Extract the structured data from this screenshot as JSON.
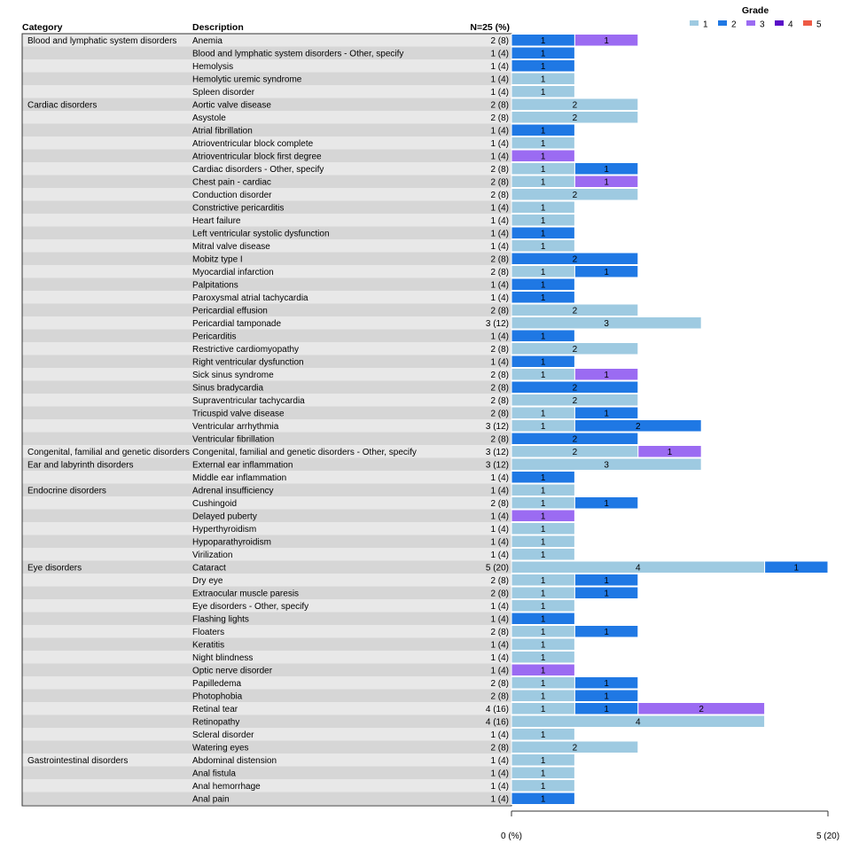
{
  "legend": {
    "title": "Grade",
    "position": "top-right",
    "items": [
      {
        "label": "1",
        "color": "#9ecae1"
      },
      {
        "label": "2",
        "color": "#1f78e4"
      },
      {
        "label": "3",
        "color": "#9b6bf2"
      },
      {
        "label": "4",
        "color": "#5a0fc8"
      },
      {
        "label": "5",
        "color": "#ee5a45"
      }
    ]
  },
  "headers": {
    "category": "Category",
    "description": "Description",
    "n": "N=25 (%)"
  },
  "axis": {
    "min_label": "0 (%)",
    "max_label": "5 (20)",
    "xlim": [
      0,
      5
    ]
  },
  "chart_data": {
    "type": "bar",
    "orientation": "horizontal",
    "stacked": true,
    "xlim": [
      0,
      5
    ],
    "grades": [
      "1",
      "2",
      "3",
      "4",
      "5"
    ],
    "rows": [
      {
        "category": "Blood and lymphatic system disorders",
        "description": "Anemia",
        "n": "2 (8)",
        "segments": [
          {
            "grade": "2",
            "value": 1
          },
          {
            "grade": "3",
            "value": 1
          }
        ]
      },
      {
        "category": "",
        "description": "Blood and lymphatic system disorders - Other, specify",
        "n": "1 (4)",
        "segments": [
          {
            "grade": "2",
            "value": 1
          }
        ]
      },
      {
        "category": "",
        "description": "Hemolysis",
        "n": "1 (4)",
        "segments": [
          {
            "grade": "2",
            "value": 1
          }
        ]
      },
      {
        "category": "",
        "description": "Hemolytic uremic syndrome",
        "n": "1 (4)",
        "segments": [
          {
            "grade": "1",
            "value": 1
          }
        ]
      },
      {
        "category": "",
        "description": "Spleen disorder",
        "n": "1 (4)",
        "segments": [
          {
            "grade": "1",
            "value": 1
          }
        ]
      },
      {
        "category": "Cardiac disorders",
        "description": "Aortic valve disease",
        "n": "2 (8)",
        "segments": [
          {
            "grade": "1",
            "value": 2
          }
        ]
      },
      {
        "category": "",
        "description": "Asystole",
        "n": "2 (8)",
        "segments": [
          {
            "grade": "1",
            "value": 2
          }
        ]
      },
      {
        "category": "",
        "description": "Atrial fibrillation",
        "n": "1 (4)",
        "segments": [
          {
            "grade": "2",
            "value": 1
          }
        ]
      },
      {
        "category": "",
        "description": "Atrioventricular block complete",
        "n": "1 (4)",
        "segments": [
          {
            "grade": "1",
            "value": 1
          }
        ]
      },
      {
        "category": "",
        "description": "Atrioventricular block first degree",
        "n": "1 (4)",
        "segments": [
          {
            "grade": "3",
            "value": 1
          }
        ]
      },
      {
        "category": "",
        "description": "Cardiac disorders - Other, specify",
        "n": "2 (8)",
        "segments": [
          {
            "grade": "1",
            "value": 1
          },
          {
            "grade": "2",
            "value": 1
          }
        ]
      },
      {
        "category": "",
        "description": "Chest pain - cardiac",
        "n": "2 (8)",
        "segments": [
          {
            "grade": "1",
            "value": 1
          },
          {
            "grade": "3",
            "value": 1
          }
        ]
      },
      {
        "category": "",
        "description": "Conduction disorder",
        "n": "2 (8)",
        "segments": [
          {
            "grade": "1",
            "value": 2
          }
        ]
      },
      {
        "category": "",
        "description": "Constrictive pericarditis",
        "n": "1 (4)",
        "segments": [
          {
            "grade": "1",
            "value": 1
          }
        ]
      },
      {
        "category": "",
        "description": "Heart failure",
        "n": "1 (4)",
        "segments": [
          {
            "grade": "1",
            "value": 1
          }
        ]
      },
      {
        "category": "",
        "description": "Left ventricular systolic dysfunction",
        "n": "1 (4)",
        "segments": [
          {
            "grade": "2",
            "value": 1
          }
        ]
      },
      {
        "category": "",
        "description": "Mitral valve disease",
        "n": "1 (4)",
        "segments": [
          {
            "grade": "1",
            "value": 1
          }
        ]
      },
      {
        "category": "",
        "description": "Mobitz type I",
        "n": "2 (8)",
        "segments": [
          {
            "grade": "2",
            "value": 2
          }
        ]
      },
      {
        "category": "",
        "description": "Myocardial infarction",
        "n": "2 (8)",
        "segments": [
          {
            "grade": "1",
            "value": 1
          },
          {
            "grade": "2",
            "value": 1
          }
        ]
      },
      {
        "category": "",
        "description": "Palpitations",
        "n": "1 (4)",
        "segments": [
          {
            "grade": "2",
            "value": 1
          }
        ]
      },
      {
        "category": "",
        "description": "Paroxysmal atrial tachycardia",
        "n": "1 (4)",
        "segments": [
          {
            "grade": "2",
            "value": 1
          }
        ]
      },
      {
        "category": "",
        "description": "Pericardial effusion",
        "n": "2 (8)",
        "segments": [
          {
            "grade": "1",
            "value": 2
          }
        ]
      },
      {
        "category": "",
        "description": "Pericardial tamponade",
        "n": "3 (12)",
        "segments": [
          {
            "grade": "1",
            "value": 3
          }
        ]
      },
      {
        "category": "",
        "description": "Pericarditis",
        "n": "1 (4)",
        "segments": [
          {
            "grade": "2",
            "value": 1
          }
        ]
      },
      {
        "category": "",
        "description": "Restrictive cardiomyopathy",
        "n": "2 (8)",
        "segments": [
          {
            "grade": "1",
            "value": 2
          }
        ]
      },
      {
        "category": "",
        "description": "Right ventricular dysfunction",
        "n": "1 (4)",
        "segments": [
          {
            "grade": "2",
            "value": 1
          }
        ]
      },
      {
        "category": "",
        "description": "Sick sinus syndrome",
        "n": "2 (8)",
        "segments": [
          {
            "grade": "1",
            "value": 1
          },
          {
            "grade": "3",
            "value": 1
          }
        ]
      },
      {
        "category": "",
        "description": "Sinus bradycardia",
        "n": "2 (8)",
        "segments": [
          {
            "grade": "2",
            "value": 2
          }
        ]
      },
      {
        "category": "",
        "description": "Supraventricular tachycardia",
        "n": "2 (8)",
        "segments": [
          {
            "grade": "1",
            "value": 2
          }
        ]
      },
      {
        "category": "",
        "description": "Tricuspid valve disease",
        "n": "2 (8)",
        "segments": [
          {
            "grade": "1",
            "value": 1
          },
          {
            "grade": "2",
            "value": 1
          }
        ]
      },
      {
        "category": "",
        "description": "Ventricular arrhythmia",
        "n": "3 (12)",
        "segments": [
          {
            "grade": "1",
            "value": 1
          },
          {
            "grade": "2",
            "value": 2
          }
        ]
      },
      {
        "category": "",
        "description": "Ventricular fibrillation",
        "n": "2 (8)",
        "segments": [
          {
            "grade": "2",
            "value": 2
          }
        ]
      },
      {
        "category": "Congenital, familial and genetic disorders",
        "description": "Congenital, familial and genetic disorders - Other, specify",
        "n": "3 (12)",
        "segments": [
          {
            "grade": "1",
            "value": 2
          },
          {
            "grade": "3",
            "value": 1
          }
        ]
      },
      {
        "category": "Ear and labyrinth disorders",
        "description": "External ear inflammation",
        "n": "3 (12)",
        "segments": [
          {
            "grade": "1",
            "value": 3
          }
        ]
      },
      {
        "category": "",
        "description": "Middle ear inflammation",
        "n": "1 (4)",
        "segments": [
          {
            "grade": "2",
            "value": 1
          }
        ]
      },
      {
        "category": "Endocrine disorders",
        "description": "Adrenal insufficiency",
        "n": "1 (4)",
        "segments": [
          {
            "grade": "1",
            "value": 1
          }
        ]
      },
      {
        "category": "",
        "description": "Cushingoid",
        "n": "2 (8)",
        "segments": [
          {
            "grade": "1",
            "value": 1
          },
          {
            "grade": "2",
            "value": 1
          }
        ]
      },
      {
        "category": "",
        "description": "Delayed puberty",
        "n": "1 (4)",
        "segments": [
          {
            "grade": "3",
            "value": 1
          }
        ]
      },
      {
        "category": "",
        "description": "Hyperthyroidism",
        "n": "1 (4)",
        "segments": [
          {
            "grade": "1",
            "value": 1
          }
        ]
      },
      {
        "category": "",
        "description": "Hypoparathyroidism",
        "n": "1 (4)",
        "segments": [
          {
            "grade": "1",
            "value": 1
          }
        ]
      },
      {
        "category": "",
        "description": "Virilization",
        "n": "1 (4)",
        "segments": [
          {
            "grade": "1",
            "value": 1
          }
        ]
      },
      {
        "category": "Eye disorders",
        "description": "Cataract",
        "n": "5 (20)",
        "segments": [
          {
            "grade": "1",
            "value": 4
          },
          {
            "grade": "2",
            "value": 1
          }
        ]
      },
      {
        "category": "",
        "description": "Dry eye",
        "n": "2 (8)",
        "segments": [
          {
            "grade": "1",
            "value": 1
          },
          {
            "grade": "2",
            "value": 1
          }
        ]
      },
      {
        "category": "",
        "description": "Extraocular muscle paresis",
        "n": "2 (8)",
        "segments": [
          {
            "grade": "1",
            "value": 1
          },
          {
            "grade": "2",
            "value": 1
          }
        ]
      },
      {
        "category": "",
        "description": "Eye disorders - Other, specify",
        "n": "1 (4)",
        "segments": [
          {
            "grade": "1",
            "value": 1
          }
        ]
      },
      {
        "category": "",
        "description": "Flashing lights",
        "n": "1 (4)",
        "segments": [
          {
            "grade": "2",
            "value": 1
          }
        ]
      },
      {
        "category": "",
        "description": "Floaters",
        "n": "2 (8)",
        "segments": [
          {
            "grade": "1",
            "value": 1
          },
          {
            "grade": "2",
            "value": 1
          }
        ]
      },
      {
        "category": "",
        "description": "Keratitis",
        "n": "1 (4)",
        "segments": [
          {
            "grade": "1",
            "value": 1
          }
        ]
      },
      {
        "category": "",
        "description": "Night blindness",
        "n": "1 (4)",
        "segments": [
          {
            "grade": "1",
            "value": 1
          }
        ]
      },
      {
        "category": "",
        "description": "Optic nerve disorder",
        "n": "1 (4)",
        "segments": [
          {
            "grade": "3",
            "value": 1
          }
        ]
      },
      {
        "category": "",
        "description": "Papilledema",
        "n": "2 (8)",
        "segments": [
          {
            "grade": "1",
            "value": 1
          },
          {
            "grade": "2",
            "value": 1
          }
        ]
      },
      {
        "category": "",
        "description": "Photophobia",
        "n": "2 (8)",
        "segments": [
          {
            "grade": "1",
            "value": 1
          },
          {
            "grade": "2",
            "value": 1
          }
        ]
      },
      {
        "category": "",
        "description": "Retinal tear",
        "n": "4 (16)",
        "segments": [
          {
            "grade": "1",
            "value": 1
          },
          {
            "grade": "2",
            "value": 1
          },
          {
            "grade": "3",
            "value": 2
          }
        ]
      },
      {
        "category": "",
        "description": "Retinopathy",
        "n": "4 (16)",
        "segments": [
          {
            "grade": "1",
            "value": 4
          }
        ]
      },
      {
        "category": "",
        "description": "Scleral disorder",
        "n": "1 (4)",
        "segments": [
          {
            "grade": "1",
            "value": 1
          }
        ]
      },
      {
        "category": "",
        "description": "Watering eyes",
        "n": "2 (8)",
        "segments": [
          {
            "grade": "1",
            "value": 2
          }
        ]
      },
      {
        "category": "Gastrointestinal disorders",
        "description": "Abdominal distension",
        "n": "1 (4)",
        "segments": [
          {
            "grade": "1",
            "value": 1
          }
        ]
      },
      {
        "category": "",
        "description": "Anal fistula",
        "n": "1 (4)",
        "segments": [
          {
            "grade": "1",
            "value": 1
          }
        ]
      },
      {
        "category": "",
        "description": "Anal hemorrhage",
        "n": "1 (4)",
        "segments": [
          {
            "grade": "1",
            "value": 1
          }
        ]
      },
      {
        "category": "",
        "description": "Anal pain",
        "n": "1 (4)",
        "segments": [
          {
            "grade": "2",
            "value": 1
          }
        ]
      }
    ]
  }
}
